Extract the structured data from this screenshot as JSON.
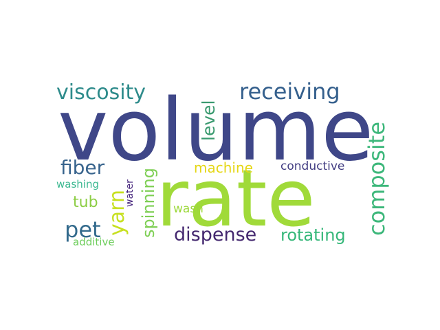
{
  "word_cloud": {
    "background": "#ffffff",
    "words": [
      {
        "id": "volume",
        "text": "volume",
        "color": "#3f4788"
      },
      {
        "id": "rate",
        "text": "rate",
        "color": "#a0da39"
      },
      {
        "id": "viscosity",
        "text": "viscosity",
        "color": "#2e8b8b"
      },
      {
        "id": "receiving",
        "text": "receiving",
        "color": "#35608d"
      },
      {
        "id": "level",
        "text": "level",
        "color": "#3a9a6f"
      },
      {
        "id": "composite",
        "text": "composite",
        "color": "#3cb77a"
      },
      {
        "id": "fiber",
        "text": "fiber",
        "color": "#38648d"
      },
      {
        "id": "machine",
        "text": "machine",
        "color": "#e5d716"
      },
      {
        "id": "conductive",
        "text": "conductive",
        "color": "#423d82"
      },
      {
        "id": "washing",
        "text": "washing",
        "color": "#3bb890"
      },
      {
        "id": "tub",
        "text": "tub",
        "color": "#8ccd44"
      },
      {
        "id": "yarn",
        "text": "yarn",
        "color": "#c7e020"
      },
      {
        "id": "spinning",
        "text": "spinning",
        "color": "#7ecf54"
      },
      {
        "id": "water",
        "text": "water",
        "color": "#46267d"
      },
      {
        "id": "wash",
        "text": "wash",
        "color": "#9cd83a"
      },
      {
        "id": "pet",
        "text": "pet",
        "color": "#336a8c"
      },
      {
        "id": "dispense",
        "text": "dispense",
        "color": "#44286f"
      },
      {
        "id": "rotating",
        "text": "rotating",
        "color": "#35b779"
      },
      {
        "id": "additive",
        "text": "additive",
        "color": "#6ccd5a"
      }
    ]
  }
}
